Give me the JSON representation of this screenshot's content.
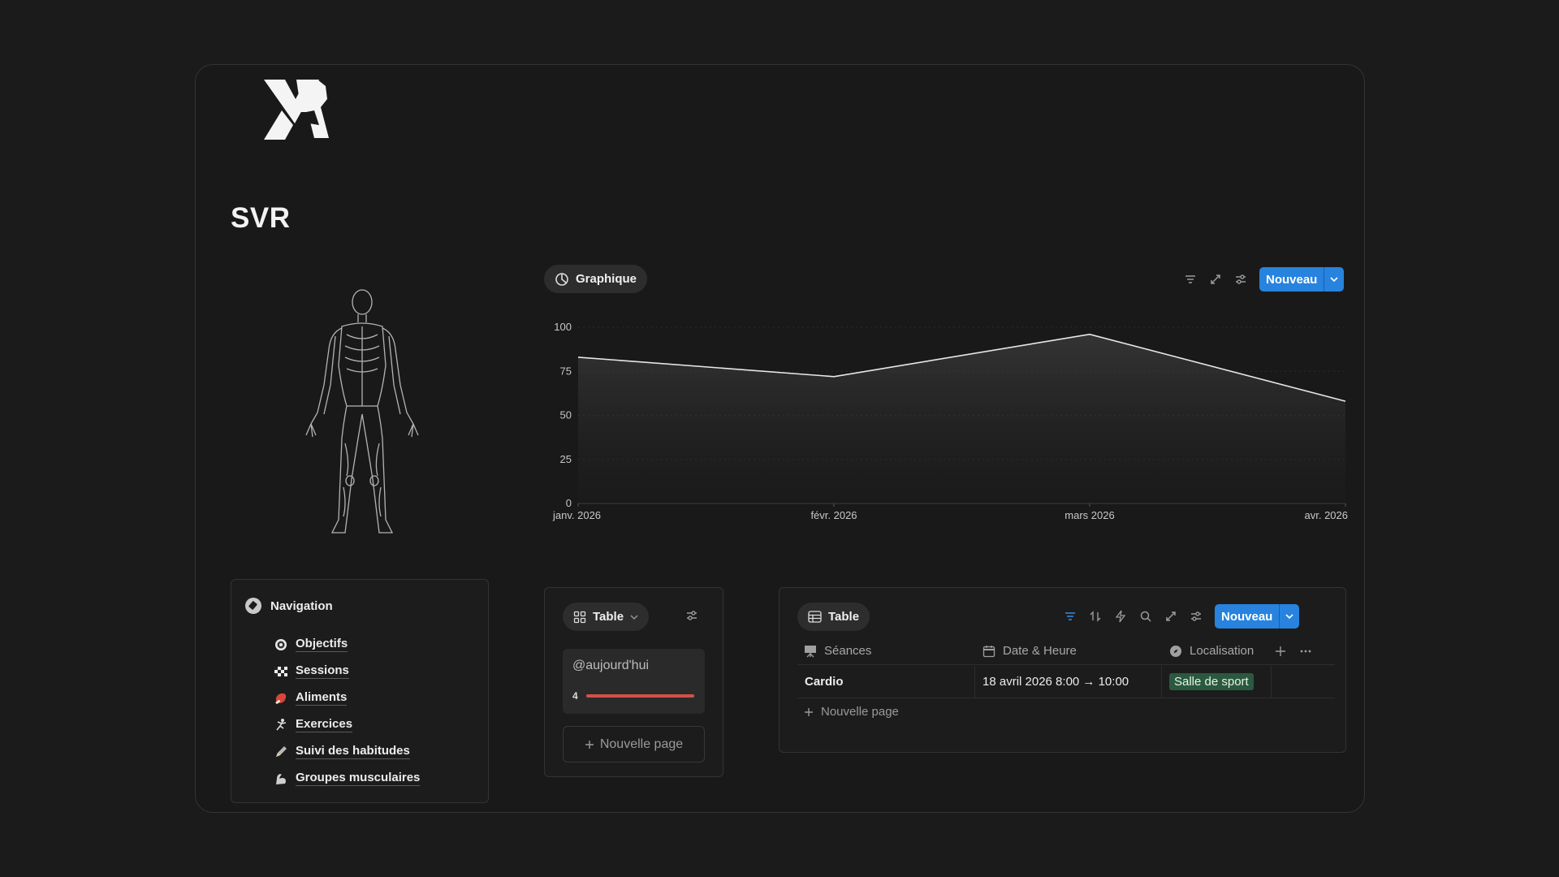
{
  "page": {
    "title": "SVR",
    "logo_text": "SVR"
  },
  "navigation": {
    "title": "Navigation",
    "items": [
      {
        "label": "Objectifs",
        "icon": "target-icon"
      },
      {
        "label": "Sessions",
        "icon": "checkered-flag-icon"
      },
      {
        "label": "Aliments",
        "icon": "meat-icon"
      },
      {
        "label": "Exercices",
        "icon": "person-exercising-icon"
      },
      {
        "label": "Suivi des habitudes",
        "icon": "pencil-icon"
      },
      {
        "label": "Groupes musculaires",
        "icon": "flexed-biceps-icon"
      }
    ]
  },
  "chart_view": {
    "tab_label": "Graphique",
    "new_button": "Nouveau"
  },
  "chart_data": {
    "type": "area",
    "categories": [
      "janv. 2026",
      "févr. 2026",
      "mars 2026",
      "avr. 2026"
    ],
    "values": [
      83,
      72,
      96,
      58
    ],
    "yticks": [
      0,
      25,
      50,
      75,
      100
    ],
    "ylim": [
      0,
      100
    ],
    "grid": true,
    "line_color": "#e8e8e8"
  },
  "board_view": {
    "tab_label": "Table",
    "card_title": "@aujourd'hui",
    "card_count": "4",
    "card_progress": 1.0,
    "new_page": "Nouvelle page"
  },
  "table_view": {
    "tab_label": "Table",
    "new_button": "Nouveau",
    "columns": [
      "Séances",
      "Date & Heure",
      "Localisation"
    ],
    "rows": [
      {
        "seance": "Cardio",
        "date": "18 avril 2026 8:00 → 10:00",
        "location": "Salle de sport"
      }
    ],
    "new_page": "Nouvelle page"
  },
  "colors": {
    "accent": "#2783de",
    "tag_green": "#2b593f",
    "progress_red": "#d45049"
  }
}
